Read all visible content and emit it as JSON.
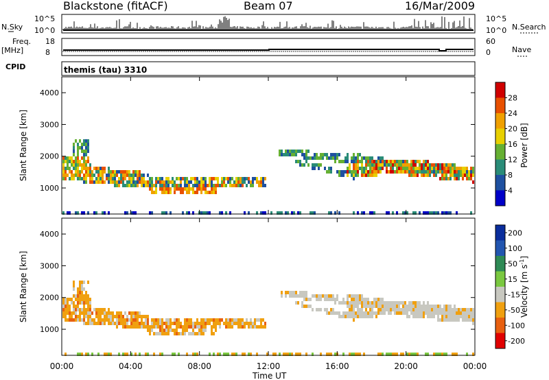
{
  "header": {
    "station": "Blackstone (fitACF)",
    "beam": "Beam 07",
    "date": "16/Mar/2009"
  },
  "control_panels": {
    "nsky_label": "N.Sky",
    "nsky_ticks": [
      "10^5",
      "10^0"
    ],
    "nsearch_label": "N.Search",
    "nsearch_ticks": [
      "10^5",
      "10^0"
    ],
    "freq_label": "Freq.",
    "freq_unit": "[MHz]",
    "freq_ticks": [
      "18",
      "8"
    ],
    "nave_label": "Nave",
    "nave_ticks": [
      "60",
      "0"
    ],
    "cpid_label": "CPID",
    "cpid_value": "themis (tau) 3310"
  },
  "chart_data": [
    {
      "type": "heatmap",
      "name": "power",
      "ylabel": "Slant Range [km]",
      "ylim": [
        180,
        4500
      ],
      "yticks": [
        "1000",
        "2000",
        "3000",
        "4000"
      ],
      "colorbar_label": "Power [dB]",
      "colorbar_ticks": [
        "4",
        "8",
        "12",
        "16",
        "20",
        "24",
        "28"
      ],
      "colors": [
        "#0000c8",
        "#1e50a0",
        "#2a8c78",
        "#66b033",
        "#e8d000",
        "#f0a000",
        "#e85000",
        "#d00000"
      ]
    },
    {
      "type": "heatmap",
      "name": "velocity",
      "ylabel": "Slant Range [km]",
      "ylim": [
        180,
        4500
      ],
      "yticks": [
        "1000",
        "2000",
        "3000",
        "4000"
      ],
      "xlabel": "Time UT",
      "xticks": [
        "00:00",
        "04:00",
        "08:00",
        "12:00",
        "16:00",
        "20:00",
        "00:00"
      ],
      "colorbar_label": "Velocity [m s",
      "colorbar_label_sup": "-1",
      "colorbar_label_end": "]",
      "colorbar_ticks": [
        "200",
        "100",
        "50",
        "15",
        "-15",
        "-50",
        "-100",
        "-200"
      ],
      "colors": [
        "#0a2d9c",
        "#2256b0",
        "#2e8a55",
        "#7ac840",
        "#c8c8c0",
        "#f0a010",
        "#e86010",
        "#e00000"
      ]
    }
  ]
}
